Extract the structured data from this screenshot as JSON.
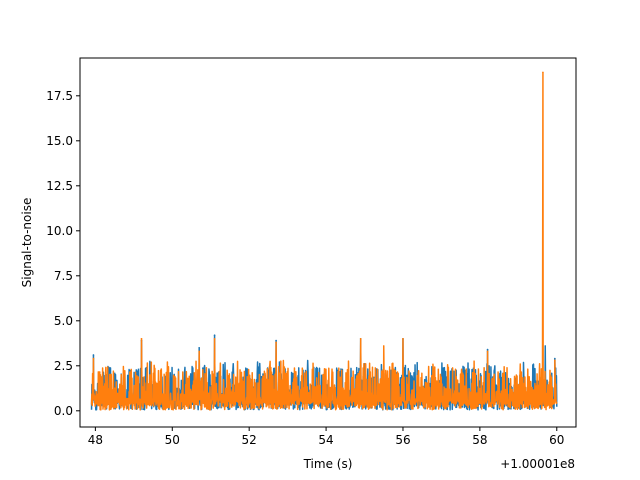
{
  "chart_data": {
    "type": "line",
    "xlabel": "Time (s)",
    "ylabel": "Signal-to-noise",
    "x_offset_label": "+1.00001e8",
    "xlim": [
      47.6,
      60.5
    ],
    "ylim": [
      -0.9,
      19.6
    ],
    "x_ticks": [
      48,
      50,
      52,
      54,
      56,
      58,
      60
    ],
    "x_tick_labels": [
      "48",
      "50",
      "52",
      "54",
      "56",
      "58",
      "60"
    ],
    "y_ticks": [
      0.0,
      2.5,
      5.0,
      7.5,
      10.0,
      12.5,
      15.0,
      17.5
    ],
    "y_tick_labels": [
      "0.0",
      "2.5",
      "5.0",
      "7.5",
      "10.0",
      "12.5",
      "15.0",
      "17.5"
    ],
    "x_range": [
      47.9,
      60.0
    ],
    "series": [
      {
        "color": "#1f77b4",
        "peaks": [
          [
            47.95,
            3.1
          ],
          [
            49.2,
            3.9
          ],
          [
            50.7,
            3.5
          ],
          [
            51.1,
            4.2
          ],
          [
            52.7,
            3.9
          ],
          [
            54.9,
            4.0
          ],
          [
            56.0,
            4.0
          ],
          [
            58.2,
            3.4
          ],
          [
            59.7,
            3.6
          ],
          [
            59.95,
            2.9
          ]
        ]
      },
      {
        "color": "#ff7f0e",
        "peaks": [
          [
            47.95,
            2.9
          ],
          [
            49.2,
            4.0
          ],
          [
            50.7,
            3.3
          ],
          [
            51.1,
            4.0
          ],
          [
            52.7,
            3.8
          ],
          [
            54.9,
            4.0
          ],
          [
            55.5,
            3.6
          ],
          [
            56.0,
            4.0
          ],
          [
            58.2,
            3.3
          ],
          [
            59.64,
            18.8
          ],
          [
            59.95,
            2.8
          ]
        ]
      }
    ]
  }
}
